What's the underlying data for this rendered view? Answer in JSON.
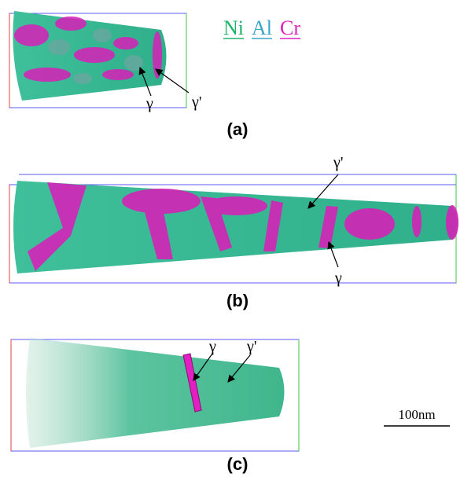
{
  "legend": [
    {
      "label": "Ni",
      "color": "#1db36b"
    },
    {
      "label": "Al",
      "color": "#3aa6c8"
    },
    {
      "label": "Cr",
      "color": "#e020c0"
    }
  ],
  "panels": [
    {
      "label": "(a)",
      "annotations": [
        "γ",
        "γ'"
      ]
    },
    {
      "label": "(b)",
      "annotations": [
        "γ'",
        "γ"
      ]
    },
    {
      "label": "(c)",
      "annotations": [
        "γ",
        "γ'"
      ]
    }
  ],
  "scale_bar": "100nm"
}
